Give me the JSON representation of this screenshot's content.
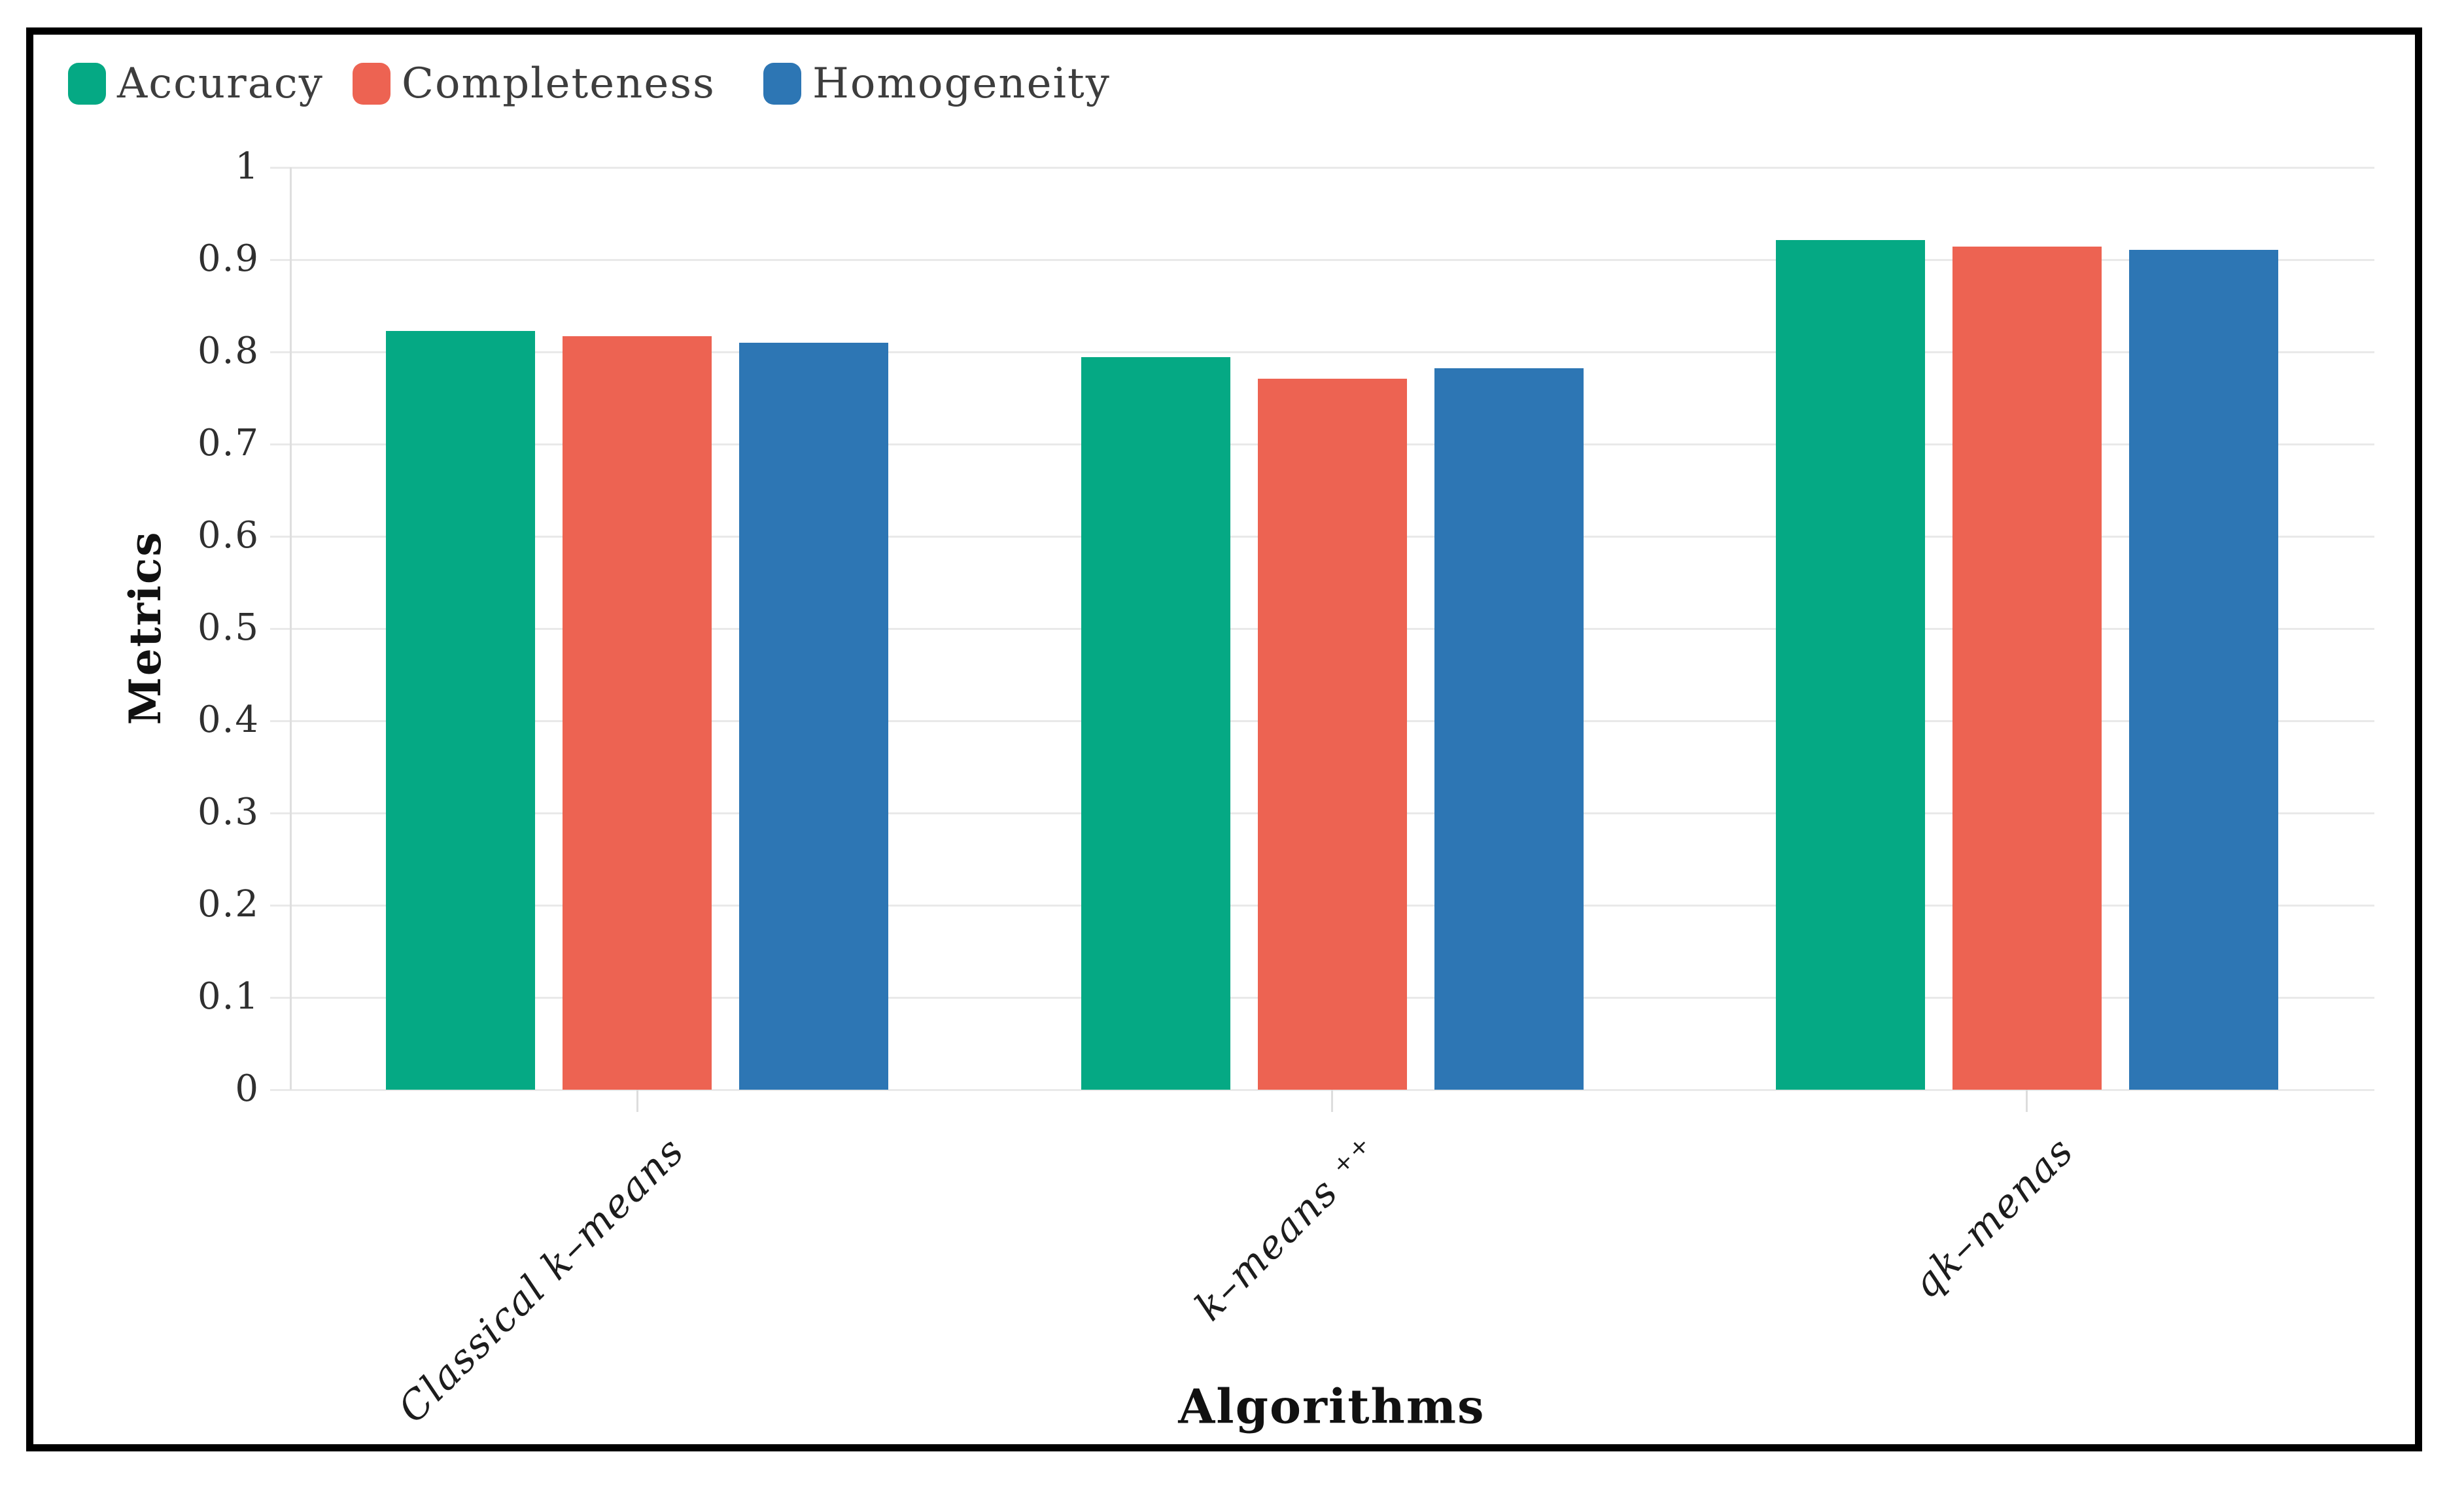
{
  "figure": {
    "border_color": "#000000",
    "background": "#ffffff"
  },
  "legend": {
    "items": [
      {
        "label": "Accuracy",
        "color": "#05a984",
        "swatch_icon": "rounded-square-swatch"
      },
      {
        "label": "Completeness",
        "color": "#ed6352",
        "swatch_icon": "rounded-square-swatch"
      },
      {
        "label": "Homogeneity",
        "color": "#2d76b4",
        "swatch_icon": "rounded-square-swatch"
      }
    ]
  },
  "y_axis": {
    "label": "Metrics"
  },
  "x_axis": {
    "label": "Algorithms"
  },
  "chart_data": {
    "type": "bar",
    "title": "",
    "xlabel": "Algorithms",
    "ylabel": "Metrics",
    "categories": [
      "Classical k–means",
      "k–means ⁺⁺",
      "qk–menas"
    ],
    "series": [
      {
        "name": "Accuracy",
        "color": "#05a984",
        "values": [
          0.823,
          0.794,
          0.921
        ]
      },
      {
        "name": "Completeness",
        "color": "#ed6352",
        "values": [
          0.817,
          0.771,
          0.914
        ]
      },
      {
        "name": "Homogeneity",
        "color": "#2d76b4",
        "values": [
          0.81,
          0.782,
          0.911
        ]
      }
    ],
    "ylim": [
      0,
      1
    ],
    "yticks": [
      0,
      0.1,
      0.2,
      0.3,
      0.4,
      0.5,
      0.6,
      0.7,
      0.8,
      0.9,
      1
    ],
    "ytick_labels": [
      "0",
      "0.1",
      "0.2",
      "0.3",
      "0.4",
      "0.5",
      "0.6",
      "0.7",
      "0.8",
      "0.9",
      "1"
    ],
    "grid": true,
    "legend_position": "top-left",
    "colors": {
      "gridline": "#e9e9e9",
      "axis_line": "#dedede",
      "tick_label_text": "#2f2f2f",
      "category_label_text": "#1c1c1c",
      "axis_title_text": "#111111",
      "legend_text": "#3d3d3d"
    }
  }
}
